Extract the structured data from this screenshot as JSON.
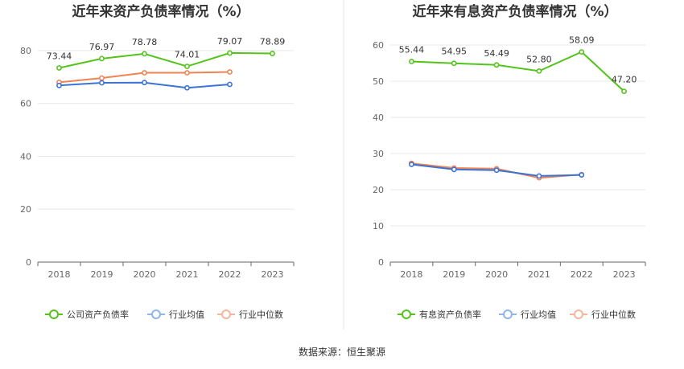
{
  "source_text": "数据来源：恒生聚源",
  "chart_data": [
    {
      "type": "line",
      "title": "近年来资产负债率情况（%）",
      "categories": [
        "2018",
        "2019",
        "2020",
        "2021",
        "2022",
        "2023"
      ],
      "ylim": [
        0,
        90
      ],
      "yticks": [
        0,
        20,
        40,
        60,
        80
      ],
      "grid": true,
      "legend_position": "bottom",
      "series": [
        {
          "name": "公司资产负债率",
          "color": "#52c41a",
          "values": [
            73.44,
            76.97,
            78.78,
            74.01,
            79.07,
            78.89
          ],
          "labels": [
            "73.44",
            "76.97",
            "78.78",
            "74.01",
            "79.07",
            "78.89"
          ]
        },
        {
          "name": "行业均值",
          "color": "#3b73d6",
          "values": [
            66.8,
            67.8,
            67.9,
            65.9,
            67.2,
            null
          ]
        },
        {
          "name": "行业中位数",
          "color": "#f08253",
          "values": [
            68.0,
            69.6,
            71.6,
            71.6,
            71.9,
            null
          ]
        }
      ]
    },
    {
      "type": "line",
      "title": "近年来有息资产负债率情况（%）",
      "categories": [
        "2018",
        "2019",
        "2020",
        "2021",
        "2022",
        "2023"
      ],
      "ylim": [
        0,
        62
      ],
      "yticks": [
        0,
        10,
        20,
        30,
        40,
        50,
        60
      ],
      "grid": true,
      "legend_position": "bottom",
      "series": [
        {
          "name": "有息资产负债率",
          "color": "#52c41a",
          "values": [
            55.44,
            54.95,
            54.49,
            52.8,
            58.09,
            47.2
          ],
          "labels": [
            "55.44",
            "54.95",
            "54.49",
            "52.80",
            "58.09",
            "47.20"
          ]
        },
        {
          "name": "行业均值",
          "color": "#3b73d6",
          "values": [
            27.0,
            25.6,
            25.4,
            23.8,
            24.1,
            null
          ]
        },
        {
          "name": "行业中位数",
          "color": "#f08253",
          "values": [
            27.3,
            26.0,
            25.8,
            23.3,
            24.2,
            null
          ]
        }
      ]
    }
  ]
}
